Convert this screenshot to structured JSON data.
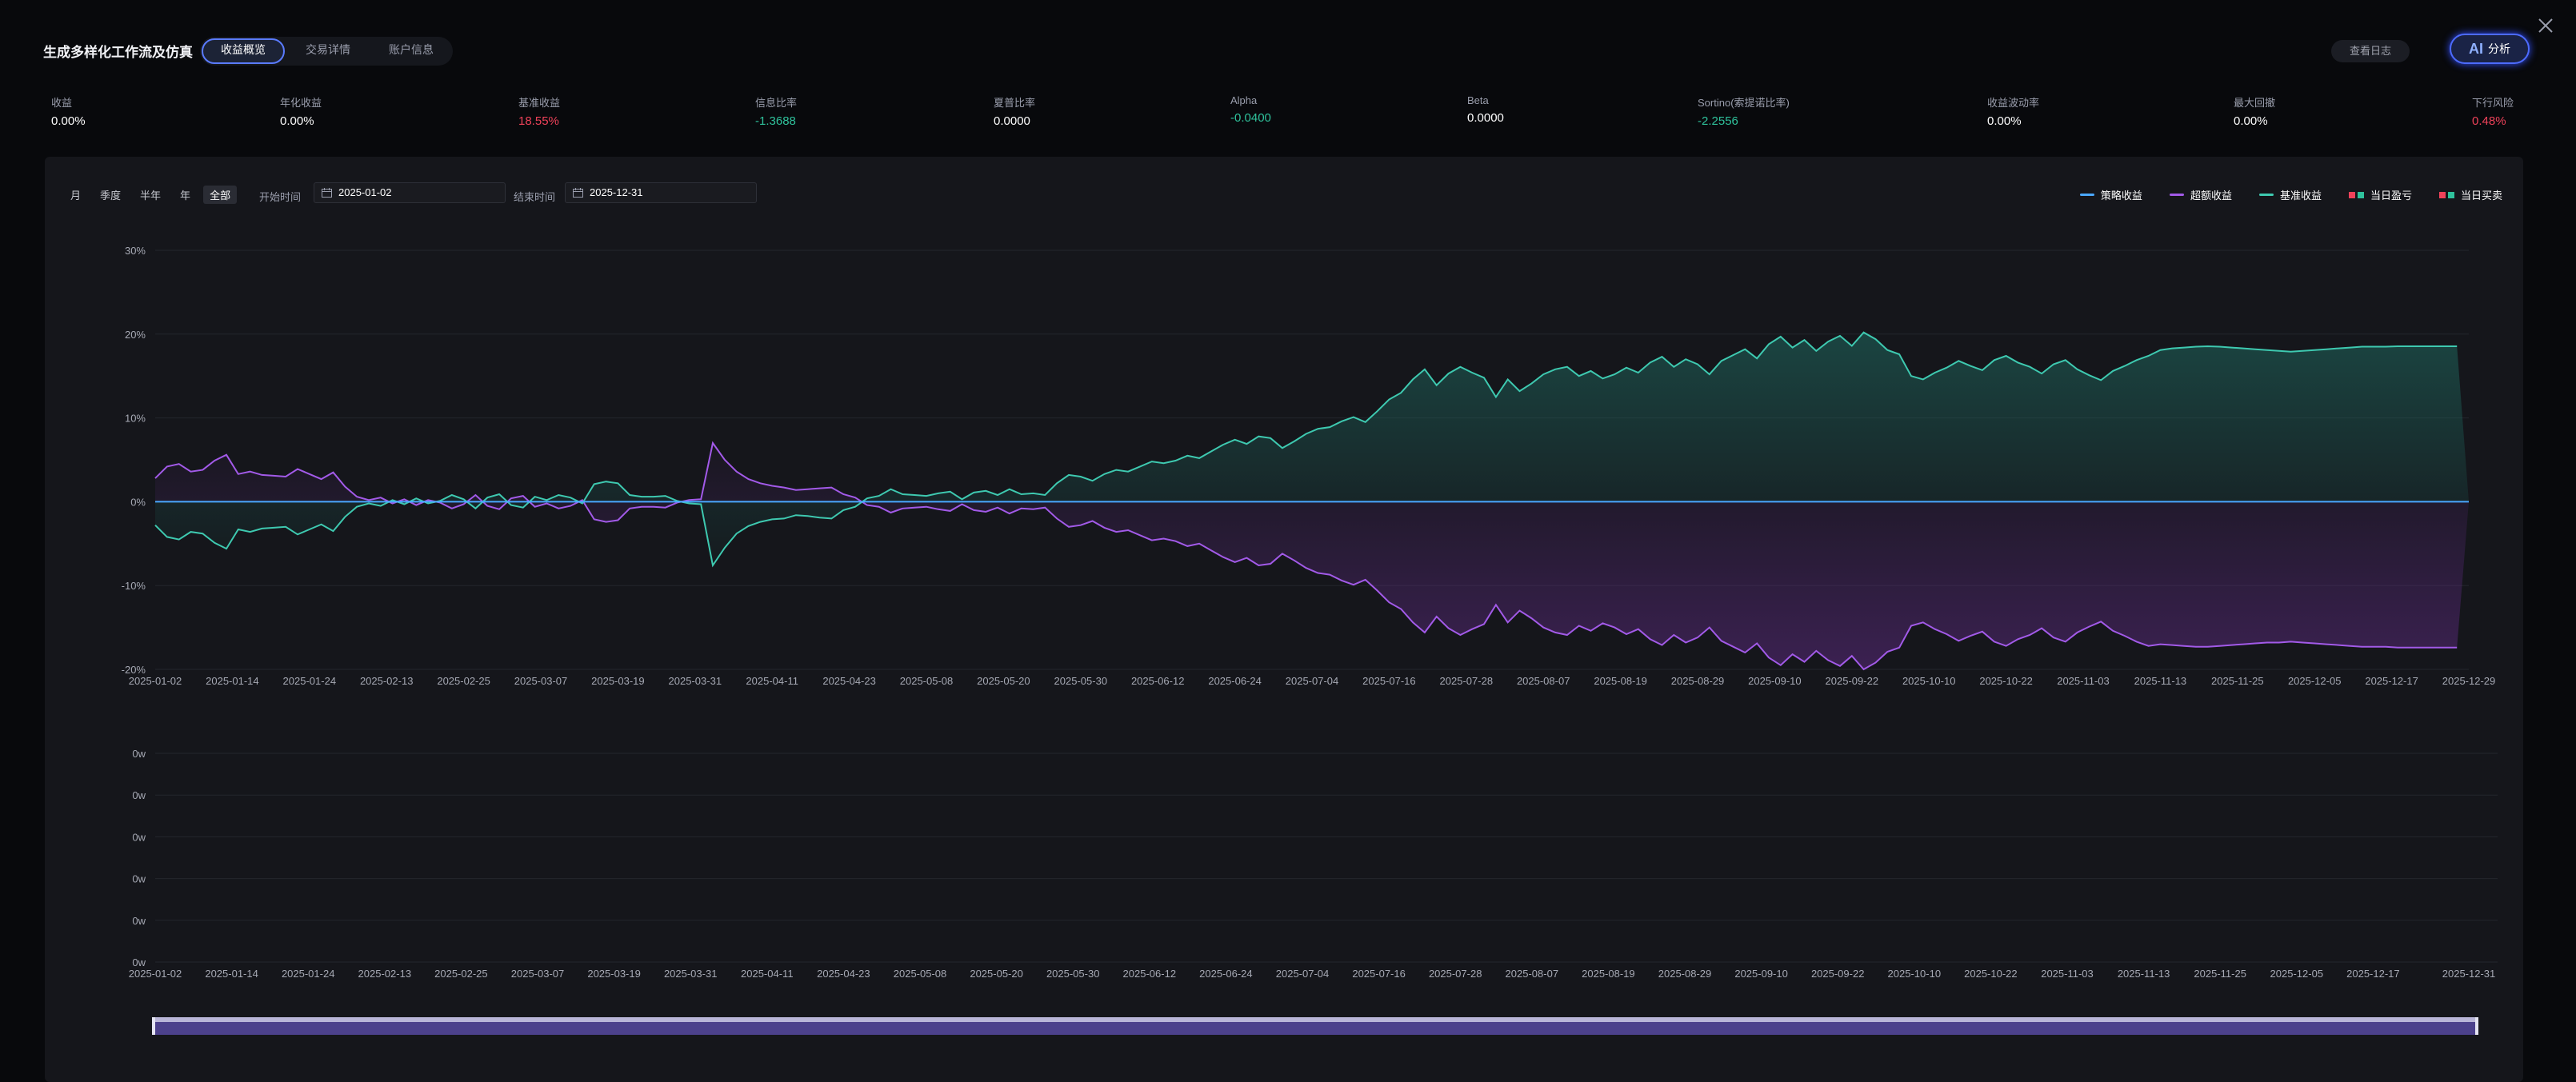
{
  "header": {
    "title": "生成多样化工作流及仿真",
    "tabs": [
      {
        "label": "收益概览",
        "active": true
      },
      {
        "label": "交易详情",
        "active": false
      },
      {
        "label": "账户信息",
        "active": false
      }
    ],
    "log_button": "查看日志",
    "ai_button": {
      "logo": "AI",
      "label": "分析"
    }
  },
  "metrics": [
    {
      "label": "收益",
      "value": "0.00%",
      "color": "white"
    },
    {
      "label": "年化收益",
      "value": "0.00%",
      "color": "white"
    },
    {
      "label": "基准收益",
      "value": "18.55%",
      "color": "red"
    },
    {
      "label": "信息比率",
      "value": "-1.3688",
      "color": "green"
    },
    {
      "label": "夏普比率",
      "value": "0.0000",
      "color": "white"
    },
    {
      "label": "Alpha",
      "value": "-0.0400",
      "color": "green"
    },
    {
      "label": "Beta",
      "value": "0.0000",
      "color": "white"
    },
    {
      "label": "Sortino(索提诺比率)",
      "value": "-2.2556",
      "color": "green"
    },
    {
      "label": "收益波动率",
      "value": "0.00%",
      "color": "white"
    },
    {
      "label": "最大回撤",
      "value": "0.00%",
      "color": "white"
    },
    {
      "label": "下行风险",
      "value": "0.48%",
      "color": "red"
    }
  ],
  "filters": {
    "periods": [
      {
        "label": "月",
        "active": false
      },
      {
        "label": "季度",
        "active": false
      },
      {
        "label": "半年",
        "active": false
      },
      {
        "label": "年",
        "active": false
      },
      {
        "label": "全部",
        "active": true
      }
    ],
    "start_label": "开始时间",
    "start_value": "2025-01-02",
    "end_label": "结束时间",
    "end_value": "2025-12-31"
  },
  "legend": [
    {
      "label": "策略收益",
      "kind": "line",
      "color": "#4aa8ff"
    },
    {
      "label": "超额收益",
      "kind": "line",
      "color": "#a25ae8"
    },
    {
      "label": "基准收益",
      "kind": "line",
      "color": "#3ec9b0"
    },
    {
      "label": "当日盈亏",
      "kind": "boxes",
      "colors": [
        "#f0425a",
        "#2fc29c"
      ]
    },
    {
      "label": "当日买卖",
      "kind": "boxes",
      "colors": [
        "#f0425a",
        "#2fc29c"
      ]
    }
  ],
  "colors": {
    "strategy": "#4aa8ff",
    "excess": "#a25ae8",
    "benchmark": "#3ec9b0",
    "grid": "#24262d",
    "axis_text": "#a6a9b4"
  },
  "chart_data": [
    {
      "type": "line",
      "y_unit": "%",
      "ylim": [
        -20,
        30
      ],
      "yticks": [
        "30%",
        "20%",
        "10%",
        "0%",
        "-10%",
        "-20%"
      ],
      "xticks": [
        "2025-01-02",
        "2025-01-14",
        "2025-01-24",
        "2025-02-13",
        "2025-02-25",
        "2025-03-07",
        "2025-03-19",
        "2025-03-31",
        "2025-04-11",
        "2025-04-23",
        "2025-05-08",
        "2025-05-20",
        "2025-05-30",
        "2025-06-12",
        "2025-06-24",
        "2025-07-04",
        "2025-07-16",
        "2025-07-28",
        "2025-08-07",
        "2025-08-19",
        "2025-08-29",
        "2025-09-10",
        "2025-09-22",
        "2025-10-10",
        "2025-10-22",
        "2025-11-03",
        "2025-11-13",
        "2025-11-25",
        "2025-12-05",
        "2025-12-17",
        "2025-12-29"
      ],
      "grid": true,
      "legend": "top-right",
      "x_index": [
        0,
        2,
        4,
        6,
        8,
        10,
        12,
        14,
        16,
        18,
        20,
        22,
        24,
        26,
        28,
        30,
        32,
        34,
        36,
        38,
        40,
        42,
        44,
        46,
        48,
        50,
        52,
        54,
        56,
        58,
        60,
        62,
        64,
        66,
        68,
        70,
        72,
        74,
        76,
        78,
        80,
        82,
        84,
        86,
        88,
        90,
        92,
        94,
        96,
        98,
        100,
        102,
        104,
        106,
        108,
        110,
        112,
        114,
        116,
        118,
        120,
        122,
        124,
        126,
        128,
        130,
        132,
        134,
        136,
        138,
        140,
        142,
        144,
        146,
        148,
        150,
        152,
        154,
        156,
        158,
        160,
        162,
        164,
        166,
        168,
        170,
        172,
        174,
        176,
        178,
        180,
        182,
        184,
        186,
        188,
        190,
        192,
        194,
        196,
        198,
        200,
        202,
        204,
        206,
        208,
        210,
        212,
        214,
        216,
        218,
        220,
        222,
        224,
        226,
        228,
        230,
        232,
        234,
        236,
        238,
        240,
        242,
        244,
        246,
        248,
        250,
        252,
        254,
        256,
        258,
        260,
        262,
        264,
        266,
        268,
        270,
        272,
        274,
        276,
        278,
        280,
        282,
        284,
        286,
        288,
        290,
        292,
        294,
        296,
        298,
        300,
        302,
        304,
        306,
        308,
        310,
        312,
        314,
        316,
        318,
        320,
        322,
        324,
        326,
        328,
        330,
        332,
        334,
        336,
        338,
        340,
        342,
        344,
        346,
        348,
        350,
        352,
        354,
        356,
        358,
        360,
        362,
        364,
        366,
        368,
        370,
        372,
        374,
        376,
        378,
        380,
        382,
        384,
        386,
        388,
        390
      ],
      "series": [
        {
          "name": "策略收益",
          "values": [
            0,
            0,
            0,
            0,
            0,
            0,
            0,
            0,
            0,
            0,
            0,
            0,
            0,
            0,
            0,
            0,
            0,
            0,
            0,
            0,
            0,
            0,
            0,
            0,
            0,
            0,
            0,
            0,
            0,
            0,
            0,
            0,
            0,
            0,
            0,
            0,
            0,
            0,
            0,
            0,
            0,
            0,
            0,
            0,
            0,
            0,
            0,
            0,
            0,
            0,
            0,
            0,
            0,
            0,
            0,
            0,
            0,
            0,
            0,
            0,
            0,
            0,
            0,
            0,
            0,
            0,
            0,
            0,
            0,
            0,
            0,
            0,
            0,
            0,
            0,
            0,
            0,
            0,
            0,
            0,
            0,
            0,
            0,
            0,
            0,
            0,
            0,
            0,
            0,
            0,
            0,
            0,
            0,
            0,
            0,
            0,
            0,
            0,
            0,
            0,
            0,
            0,
            0,
            0,
            0,
            0,
            0,
            0,
            0,
            0,
            0,
            0,
            0,
            0,
            0,
            0,
            0,
            0,
            0,
            0,
            0,
            0,
            0,
            0,
            0,
            0,
            0,
            0,
            0,
            0,
            0,
            0,
            0,
            0,
            0,
            0,
            0,
            0,
            0,
            0,
            0,
            0,
            0,
            0,
            0,
            0,
            0,
            0,
            0,
            0,
            0,
            0,
            0,
            0,
            0,
            0,
            0,
            0,
            0,
            0,
            0,
            0,
            0,
            0,
            0,
            0,
            0,
            0,
            0,
            0,
            0,
            0,
            0,
            0,
            0,
            0,
            0,
            0,
            0,
            0,
            0,
            0,
            0,
            0,
            0,
            0,
            0,
            0,
            0,
            0,
            0,
            0,
            0,
            0,
            0,
            0
          ]
        },
        {
          "name": "基准收益",
          "values": [
            -2.8,
            -4.2,
            -4.5,
            -3.6,
            -3.8,
            -4.9,
            -5.6,
            -3.3,
            -3.6,
            -3.2,
            -3.1,
            -3.0,
            -3.9,
            -3.3,
            -2.7,
            -3.5,
            -1.8,
            -0.6,
            -0.2,
            -0.5,
            0.2,
            -0.3,
            0.4,
            -0.2,
            0.1,
            0.8,
            0.3,
            -0.8,
            0.5,
            0.9,
            -0.4,
            -0.7,
            0.6,
            0.2,
            0.8,
            0.5,
            -0.2,
            2.1,
            2.4,
            2.2,
            0.8,
            0.6,
            0.6,
            0.7,
            0.1,
            -0.2,
            -0.3,
            -7.6,
            -5.5,
            -3.8,
            -2.9,
            -2.4,
            -2.1,
            -2.0,
            -1.6,
            -1.7,
            -1.9,
            -2.0,
            -1.0,
            -0.6,
            0.4,
            0.7,
            1.5,
            0.9,
            0.8,
            0.7,
            1.0,
            1.2,
            0.3,
            1.1,
            1.3,
            0.8,
            1.5,
            0.9,
            1.0,
            0.8,
            2.2,
            3.2,
            3.0,
            2.5,
            3.3,
            3.8,
            3.6,
            4.2,
            4.8,
            4.6,
            4.9,
            5.5,
            5.2,
            6.0,
            6.8,
            7.4,
            6.9,
            7.8,
            7.6,
            6.4,
            7.2,
            8.1,
            8.7,
            8.9,
            9.6,
            10.1,
            9.5,
            10.8,
            12.2,
            13.0,
            14.6,
            15.8,
            13.9,
            15.3,
            16.1,
            15.4,
            14.8,
            12.5,
            14.6,
            13.2,
            14.1,
            15.2,
            15.8,
            16.1,
            15.0,
            15.6,
            14.7,
            15.2,
            16.0,
            15.4,
            16.6,
            17.3,
            16.1,
            17.0,
            16.4,
            15.2,
            16.8,
            17.5,
            18.2,
            17.1,
            18.8,
            19.7,
            18.4,
            19.3,
            18.0,
            19.1,
            19.8,
            18.6,
            20.2,
            19.4,
            18.1,
            17.6,
            15.0,
            14.6,
            15.4,
            16.0,
            16.8,
            16.2,
            15.7,
            16.9,
            17.4,
            16.6,
            16.1,
            15.3,
            16.4,
            16.9,
            15.8,
            15.1,
            14.5,
            15.6,
            16.2,
            16.9,
            17.4,
            18.1,
            18.3,
            18.4,
            18.5,
            18.55,
            18.5,
            18.4,
            18.3,
            18.2,
            18.1,
            18.0,
            17.9,
            18.0,
            18.1,
            18.2,
            18.3,
            18.4,
            18.5,
            18.5,
            18.5,
            18.55,
            18.55,
            18.55,
            18.55,
            18.55,
            18.55
          ]
        },
        {
          "name": "超额收益",
          "values": [
            2.8,
            4.2,
            4.5,
            3.6,
            3.8,
            4.9,
            5.6,
            3.3,
            3.6,
            3.2,
            3.1,
            3.0,
            3.9,
            3.3,
            2.7,
            3.5,
            1.8,
            0.6,
            0.2,
            0.5,
            -0.2,
            0.3,
            -0.4,
            0.2,
            -0.1,
            -0.8,
            -0.3,
            0.8,
            -0.5,
            -0.9,
            0.4,
            0.7,
            -0.6,
            -0.2,
            -0.8,
            -0.5,
            0.2,
            -2.1,
            -2.4,
            -2.2,
            -0.8,
            -0.6,
            -0.6,
            -0.7,
            -0.1,
            0.2,
            0.3,
            7.0,
            5.0,
            3.6,
            2.7,
            2.2,
            1.9,
            1.7,
            1.4,
            1.5,
            1.6,
            1.7,
            0.9,
            0.5,
            -0.4,
            -0.6,
            -1.3,
            -0.8,
            -0.7,
            -0.6,
            -0.9,
            -1.1,
            -0.3,
            -1.0,
            -1.2,
            -0.7,
            -1.4,
            -0.8,
            -0.9,
            -0.7,
            -2.0,
            -3.0,
            -2.8,
            -2.3,
            -3.1,
            -3.6,
            -3.4,
            -4.0,
            -4.6,
            -4.4,
            -4.7,
            -5.3,
            -5.0,
            -5.8,
            -6.6,
            -7.2,
            -6.7,
            -7.6,
            -7.4,
            -6.2,
            -7.0,
            -7.9,
            -8.5,
            -8.7,
            -9.4,
            -9.9,
            -9.3,
            -10.6,
            -12.0,
            -12.8,
            -14.4,
            -15.6,
            -13.7,
            -15.1,
            -15.9,
            -15.2,
            -14.6,
            -12.3,
            -14.4,
            -13.0,
            -13.9,
            -15.0,
            -15.6,
            -15.9,
            -14.8,
            -15.4,
            -14.5,
            -15.0,
            -15.8,
            -15.2,
            -16.4,
            -17.1,
            -15.9,
            -16.8,
            -16.2,
            -15.0,
            -16.6,
            -17.3,
            -18.0,
            -16.9,
            -18.6,
            -19.5,
            -18.2,
            -19.1,
            -17.8,
            -18.9,
            -19.6,
            -18.4,
            -20.0,
            -19.2,
            -17.9,
            -17.4,
            -14.8,
            -14.4,
            -15.2,
            -15.8,
            -16.6,
            -16.0,
            -15.5,
            -16.7,
            -17.2,
            -16.4,
            -15.9,
            -15.1,
            -16.2,
            -16.7,
            -15.6,
            -14.9,
            -14.3,
            -15.4,
            -16.0,
            -16.7,
            -17.2,
            -17.0,
            -17.1,
            -17.2,
            -17.3,
            -17.3,
            -17.2,
            -17.1,
            -17.0,
            -16.9,
            -16.8,
            -16.8,
            -16.7,
            -16.8,
            -16.9,
            -17.0,
            -17.1,
            -17.2,
            -17.3,
            -17.3,
            -17.3,
            -17.4,
            -17.4,
            -17.4,
            -17.4,
            -17.4,
            -17.4
          ]
        }
      ]
    },
    {
      "type": "bar",
      "y_unit": "w",
      "yticks": [
        "0w",
        "0w",
        "0w",
        "0w",
        "0w",
        "0w"
      ],
      "xticks": [
        "2025-01-02",
        "2025-01-14",
        "2025-01-24",
        "2025-02-13",
        "2025-02-25",
        "2025-03-07",
        "2025-03-19",
        "2025-03-31",
        "2025-04-11",
        "2025-04-23",
        "2025-05-08",
        "2025-05-20",
        "2025-05-30",
        "2025-06-12",
        "2025-06-24",
        "2025-07-04",
        "2025-07-16",
        "2025-07-28",
        "2025-08-07",
        "2025-08-19",
        "2025-08-29",
        "2025-09-10",
        "2025-09-22",
        "2025-10-10",
        "2025-10-22",
        "2025-11-03",
        "2025-11-13",
        "2025-11-25",
        "2025-12-05",
        "2025-12-17",
        "2025-12-31"
      ],
      "values": [],
      "grid": true
    }
  ],
  "zoom_slider": {
    "start": 0,
    "end": 100
  }
}
